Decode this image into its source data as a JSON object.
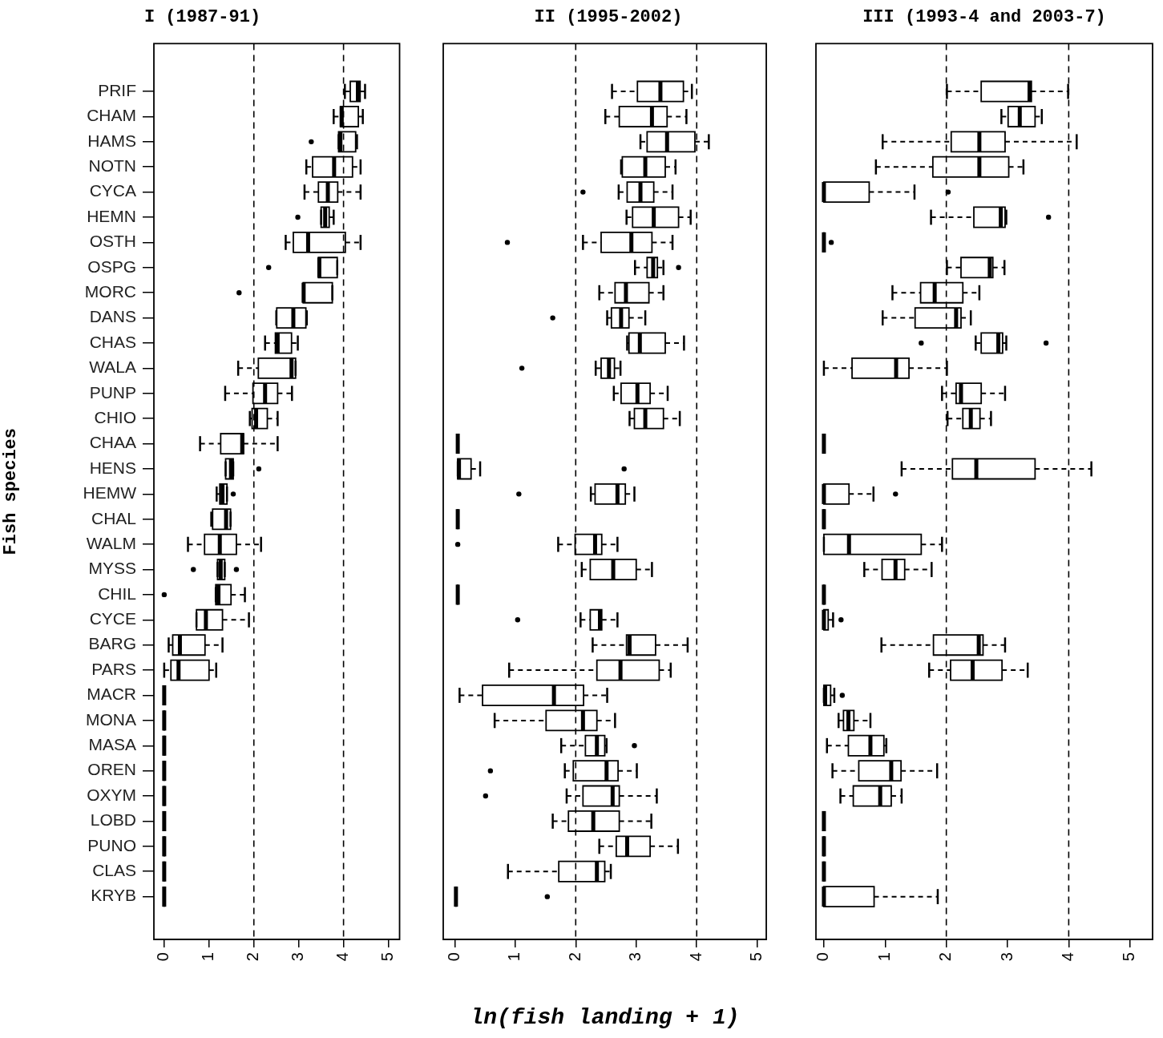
{
  "chart_data": [
    {
      "type": "box",
      "title": "I (1987-91)",
      "ylabel": "Fish species",
      "orientation": "horizontal",
      "xlim": [
        -0.23,
        5.25
      ],
      "xticks": [
        0,
        1,
        2,
        3,
        4,
        5
      ],
      "categories": [
        "PRIF",
        "CHAM",
        "HAMS",
        "NOTN",
        "CYCA",
        "HEMN",
        "OSTH",
        "OSPG",
        "MORC",
        "DANS",
        "CHAS",
        "WALA",
        "PUNP",
        "CHIO",
        "CHAA",
        "HENS",
        "HEMW",
        "CHAL",
        "WALM",
        "MYSS",
        "CHIL",
        "CYCE",
        "BARG",
        "PARS",
        "MACR",
        "MONA",
        "MASA",
        "OREN",
        "OXYM",
        "LOBD",
        "PUNO",
        "CLAS",
        "KRYB"
      ],
      "ref_lines": [
        {
          "axis": "x",
          "value": 2,
          "line_style": "dashed"
        },
        {
          "axis": "x",
          "value": 4,
          "line_style": "dashed"
        }
      ],
      "boxes": [
        {
          "low": 4.03,
          "q1": 4.15,
          "median": 4.32,
          "q3": 4.37,
          "high": 4.48
        },
        {
          "low": 3.78,
          "q1": 3.93,
          "median": 3.96,
          "q3": 4.33,
          "high": 4.43
        },
        {
          "low": 3.89,
          "q1": 3.89,
          "median": 3.93,
          "q3": 4.27,
          "high": 4.3,
          "outliers": [
            3.28
          ]
        },
        {
          "low": 3.17,
          "q1": 3.31,
          "median": 3.79,
          "q3": 4.2,
          "high": 4.38
        },
        {
          "low": 3.13,
          "q1": 3.44,
          "median": 3.65,
          "q3": 3.87,
          "high": 4.38
        },
        {
          "low": 3.5,
          "q1": 3.5,
          "median": 3.59,
          "q3": 3.68,
          "high": 3.78,
          "outliers": [
            2.98
          ]
        },
        {
          "low": 2.71,
          "q1": 2.88,
          "median": 3.21,
          "q3": 4.04,
          "high": 4.38
        },
        {
          "low": 3.44,
          "q1": 3.44,
          "median": 3.46,
          "q3": 3.86,
          "high": 3.86,
          "outliers": [
            2.33
          ]
        },
        {
          "low": 3.1,
          "q1": 3.1,
          "median": 3.11,
          "q3": 3.75,
          "high": 3.75,
          "outliers": [
            1.67
          ]
        },
        {
          "low": 2.5,
          "q1": 2.51,
          "median": 2.88,
          "q3": 3.16,
          "high": 3.18
        },
        {
          "low": 2.25,
          "q1": 2.48,
          "median": 2.53,
          "q3": 2.84,
          "high": 2.98
        },
        {
          "low": 1.65,
          "q1": 2.1,
          "median": 2.84,
          "q3": 2.93,
          "high": 2.93
        },
        {
          "low": 1.36,
          "q1": 1.98,
          "median": 2.25,
          "q3": 2.53,
          "high": 2.85
        },
        {
          "low": 1.91,
          "q1": 1.96,
          "median": 2.05,
          "q3": 2.3,
          "high": 2.53
        },
        {
          "low": 0.8,
          "q1": 1.26,
          "median": 1.74,
          "q3": 1.77,
          "high": 2.53
        },
        {
          "low": 1.37,
          "q1": 1.37,
          "median": 1.49,
          "q3": 1.54,
          "high": 1.54,
          "outliers": [
            2.11
          ]
        },
        {
          "low": 1.17,
          "q1": 1.24,
          "median": 1.3,
          "q3": 1.4,
          "high": 1.4,
          "outliers": [
            1.54
          ]
        },
        {
          "low": 1.05,
          "q1": 1.08,
          "median": 1.38,
          "q3": 1.48,
          "high": 1.48
        },
        {
          "low": 0.53,
          "q1": 0.9,
          "median": 1.24,
          "q3": 1.61,
          "high": 2.16
        },
        {
          "low": 1.19,
          "q1": 1.19,
          "median": 1.26,
          "q3": 1.35,
          "high": 1.35,
          "outliers": [
            0.65,
            1.61
          ]
        },
        {
          "low": 1.15,
          "q1": 1.15,
          "median": 1.21,
          "q3": 1.49,
          "high": 1.8,
          "outliers": [
            0
          ]
        },
        {
          "low": 0.72,
          "q1": 0.72,
          "median": 0.93,
          "q3": 1.3,
          "high": 1.89
        },
        {
          "low": 0.1,
          "q1": 0.19,
          "median": 0.35,
          "q3": 0.91,
          "high": 1.3
        },
        {
          "low": 0,
          "q1": 0.15,
          "median": 0.32,
          "q3": 1,
          "high": 1.16
        },
        {
          "low": 0,
          "q1": 0,
          "median": 0,
          "q3": 0,
          "high": 0
        },
        {
          "low": 0,
          "q1": 0,
          "median": 0,
          "q3": 0,
          "high": 0
        },
        {
          "low": 0,
          "q1": 0,
          "median": 0,
          "q3": 0,
          "high": 0
        },
        {
          "low": 0,
          "q1": 0,
          "median": 0,
          "q3": 0,
          "high": 0
        },
        {
          "low": 0,
          "q1": 0,
          "median": 0,
          "q3": 0,
          "high": 0
        },
        {
          "low": 0,
          "q1": 0,
          "median": 0,
          "q3": 0,
          "high": 0
        },
        {
          "low": 0,
          "q1": 0,
          "median": 0,
          "q3": 0,
          "high": 0
        },
        {
          "low": 0,
          "q1": 0,
          "median": 0,
          "q3": 0,
          "high": 0
        },
        {
          "low": 0,
          "q1": 0,
          "median": 0,
          "q3": 0,
          "high": 0
        }
      ]
    },
    {
      "type": "box",
      "title": "II (1995-2002)",
      "xlabel": "ln(fish landing + 1)",
      "orientation": "horizontal",
      "xlim": [
        -0.19,
        5.15
      ],
      "xticks": [
        0,
        1,
        2,
        3,
        4,
        5
      ],
      "tick_labels": "x",
      "categories": [
        null,
        null,
        null,
        null,
        null,
        null,
        null,
        null,
        null,
        null,
        null,
        null,
        null,
        null,
        null,
        null,
        null,
        null,
        null,
        null,
        null,
        null,
        null,
        null,
        null,
        null,
        null,
        null,
        null,
        null,
        null,
        null,
        null
      ],
      "ref_lines": [
        {
          "axis": "x",
          "value": 2,
          "line_style": "dashed"
        },
        {
          "axis": "x",
          "value": 4,
          "line_style": "dashed"
        }
      ],
      "boxes": [
        {
          "low": 2.6,
          "q1": 3.02,
          "median": 3.4,
          "q3": 3.78,
          "high": 3.92
        },
        {
          "low": 2.49,
          "q1": 2.72,
          "median": 3.26,
          "q3": 3.51,
          "high": 3.83
        },
        {
          "low": 3.07,
          "q1": 3.18,
          "median": 3.51,
          "q3": 3.97,
          "high": 4.2
        },
        {
          "low": 2.75,
          "q1": 2.77,
          "median": 3.15,
          "q3": 3.48,
          "high": 3.65
        },
        {
          "low": 2.71,
          "q1": 2.85,
          "median": 3.07,
          "q3": 3.29,
          "high": 3.6,
          "outliers": [
            2.12
          ]
        },
        {
          "low": 2.84,
          "q1": 2.94,
          "median": 3.29,
          "q3": 3.7,
          "high": 3.9
        },
        {
          "low": 2.12,
          "q1": 2.42,
          "median": 2.92,
          "q3": 3.26,
          "high": 3.6,
          "outliers": [
            0.87
          ]
        },
        {
          "low": 2.98,
          "q1": 3.18,
          "median": 3.28,
          "q3": 3.35,
          "high": 3.45,
          "outliers": [
            3.7
          ]
        },
        {
          "low": 2.39,
          "q1": 2.65,
          "median": 2.83,
          "q3": 3.21,
          "high": 3.45
        },
        {
          "low": 2.52,
          "q1": 2.59,
          "median": 2.75,
          "q3": 2.88,
          "high": 3.15,
          "outliers": [
            1.62
          ]
        },
        {
          "low": 2.85,
          "q1": 2.88,
          "median": 3.06,
          "q3": 3.48,
          "high": 3.79
        },
        {
          "low": 2.33,
          "q1": 2.42,
          "median": 2.55,
          "q3": 2.64,
          "high": 2.74,
          "outliers": [
            1.11
          ]
        },
        {
          "low": 2.63,
          "q1": 2.75,
          "median": 3.02,
          "q3": 3.23,
          "high": 3.52
        },
        {
          "low": 2.89,
          "q1": 2.97,
          "median": 3.15,
          "q3": 3.45,
          "high": 3.72
        },
        {
          "low": 0.05,
          "q1": 0.05,
          "median": 0.05,
          "q3": 0.05,
          "high": 0.05
        },
        {
          "low": 0.05,
          "q1": 0.05,
          "median": 0.07,
          "q3": 0.27,
          "high": 0.42,
          "outliers": [
            2.8
          ]
        },
        {
          "low": 2.25,
          "q1": 2.32,
          "median": 2.69,
          "q3": 2.82,
          "high": 2.97,
          "outliers": [
            1.06
          ]
        },
        {
          "low": 0.05,
          "q1": 0.05,
          "median": 0.05,
          "q3": 0.05,
          "high": 0.05
        },
        {
          "low": 1.71,
          "q1": 1.99,
          "median": 2.32,
          "q3": 2.43,
          "high": 2.69,
          "outliers": [
            0.05
          ]
        },
        {
          "low": 2.1,
          "q1": 2.24,
          "median": 2.62,
          "q3": 3,
          "high": 3.26
        },
        {
          "low": 0.05,
          "q1": 0.05,
          "median": 0.05,
          "q3": 0.05,
          "high": 0.05
        },
        {
          "low": 2.08,
          "q1": 2.24,
          "median": 2.4,
          "q3": 2.43,
          "high": 2.69,
          "outliers": [
            1.04
          ]
        },
        {
          "low": 2.28,
          "q1": 2.84,
          "median": 2.89,
          "q3": 3.32,
          "high": 3.85
        },
        {
          "low": 0.9,
          "q1": 2.35,
          "median": 2.74,
          "q3": 3.38,
          "high": 3.57
        },
        {
          "low": 0.08,
          "q1": 0.46,
          "median": 1.64,
          "q3": 2.13,
          "high": 2.52
        },
        {
          "low": 0.66,
          "q1": 1.51,
          "median": 2.12,
          "q3": 2.35,
          "high": 2.65
        },
        {
          "low": 1.76,
          "q1": 2.16,
          "median": 2.35,
          "q3": 2.48,
          "high": 2.51,
          "outliers": [
            2.97
          ]
        },
        {
          "low": 1.82,
          "q1": 1.96,
          "median": 2.51,
          "q3": 2.7,
          "high": 3.01,
          "outliers": [
            0.59
          ]
        },
        {
          "low": 1.85,
          "q1": 2.12,
          "median": 2.61,
          "q3": 2.72,
          "high": 3.34,
          "outliers": [
            0.51
          ]
        },
        {
          "low": 1.62,
          "q1": 1.88,
          "median": 2.29,
          "q3": 2.72,
          "high": 3.25
        },
        {
          "low": 2.39,
          "q1": 2.67,
          "median": 2.85,
          "q3": 3.23,
          "high": 3.69
        },
        {
          "low": 0.88,
          "q1": 1.72,
          "median": 2.35,
          "q3": 2.48,
          "high": 2.58
        },
        {
          "low": 0.02,
          "q1": 0.02,
          "median": 0.02,
          "q3": 0.02,
          "high": 0.02,
          "outliers": [
            1.53
          ]
        }
      ]
    },
    {
      "type": "box",
      "title": "III (1993-4 and 2003-7)",
      "orientation": "horizontal",
      "xlim": [
        -0.13,
        5.37
      ],
      "xticks": [
        0,
        1,
        2,
        3,
        4,
        5
      ],
      "tick_labels": "x",
      "categories": [
        null,
        null,
        null,
        null,
        null,
        null,
        null,
        null,
        null,
        null,
        null,
        null,
        null,
        null,
        null,
        null,
        null,
        null,
        null,
        null,
        null,
        null,
        null,
        null,
        null,
        null,
        null,
        null,
        null,
        null,
        null,
        null,
        null
      ],
      "ref_lines": [
        {
          "axis": "x",
          "value": 2,
          "line_style": "dashed"
        },
        {
          "axis": "x",
          "value": 4,
          "line_style": "dashed"
        }
      ],
      "boxes": [
        {
          "low": 2.01,
          "q1": 2.57,
          "median": 3.36,
          "q3": 3.39,
          "high": 3.99
        },
        {
          "low": 2.9,
          "q1": 3.01,
          "median": 3.2,
          "q3": 3.45,
          "high": 3.56
        },
        {
          "low": 0.96,
          "q1": 2.08,
          "median": 2.54,
          "q3": 2.96,
          "high": 4.13
        },
        {
          "low": 0.85,
          "q1": 1.78,
          "median": 2.54,
          "q3": 3.02,
          "high": 3.26
        },
        {
          "low": 0,
          "q1": 0,
          "median": 0,
          "q3": 0.74,
          "high": 1.48,
          "outliers": [
            2.03
          ]
        },
        {
          "low": 1.75,
          "q1": 2.45,
          "median": 2.89,
          "q3": 2.96,
          "high": 2.98,
          "outliers": [
            3.67
          ]
        },
        {
          "low": 0,
          "q1": 0,
          "median": 0,
          "q3": 0,
          "high": 0,
          "outliers": [
            0.12
          ]
        },
        {
          "low": 2.01,
          "q1": 2.24,
          "median": 2.71,
          "q3": 2.76,
          "high": 2.95
        },
        {
          "low": 1.12,
          "q1": 1.58,
          "median": 1.81,
          "q3": 2.27,
          "high": 2.54
        },
        {
          "low": 0.96,
          "q1": 1.49,
          "median": 2.16,
          "q3": 2.24,
          "high": 2.4
        },
        {
          "low": 2.48,
          "q1": 2.57,
          "median": 2.85,
          "q3": 2.92,
          "high": 2.98,
          "outliers": [
            1.59,
            3.63
          ]
        },
        {
          "low": 0,
          "q1": 0.46,
          "median": 1.18,
          "q3": 1.39,
          "high": 2.01
        },
        {
          "low": 1.93,
          "q1": 2.16,
          "median": 2.24,
          "q3": 2.57,
          "high": 2.96
        },
        {
          "low": 2.02,
          "q1": 2.27,
          "median": 2.4,
          "q3": 2.55,
          "high": 2.73
        },
        {
          "low": 0,
          "q1": 0,
          "median": 0,
          "q3": 0,
          "high": 0
        },
        {
          "low": 1.27,
          "q1": 2.1,
          "median": 2.49,
          "q3": 3.45,
          "high": 4.37
        },
        {
          "low": 0,
          "q1": 0,
          "median": 0,
          "q3": 0.41,
          "high": 0.81,
          "outliers": [
            1.17
          ]
        },
        {
          "low": 0,
          "q1": 0,
          "median": 0,
          "q3": 0,
          "high": 0
        },
        {
          "low": 0,
          "q1": 0,
          "median": 0.41,
          "q3": 1.59,
          "high": 1.93
        },
        {
          "low": 0.66,
          "q1": 0.95,
          "median": 1.17,
          "q3": 1.32,
          "high": 1.76
        },
        {
          "low": 0,
          "q1": 0,
          "median": 0,
          "q3": 0,
          "high": 0
        },
        {
          "low": 0,
          "q1": 0,
          "median": 0,
          "q3": 0.07,
          "high": 0.15,
          "outliers": [
            0.28
          ]
        },
        {
          "low": 0.94,
          "q1": 1.79,
          "median": 2.53,
          "q3": 2.6,
          "high": 2.96
        },
        {
          "low": 1.72,
          "q1": 2.07,
          "median": 2.43,
          "q3": 2.91,
          "high": 3.33
        },
        {
          "low": 0,
          "q1": 0,
          "median": 0.02,
          "q3": 0.11,
          "high": 0.17,
          "outliers": [
            0.3
          ]
        },
        {
          "low": 0.24,
          "q1": 0.32,
          "median": 0.4,
          "q3": 0.49,
          "high": 0.76
        },
        {
          "low": 0.05,
          "q1": 0.4,
          "median": 0.76,
          "q3": 0.98,
          "high": 1.02
        },
        {
          "low": 0.14,
          "q1": 0.57,
          "median": 1.1,
          "q3": 1.26,
          "high": 1.85
        },
        {
          "low": 0.27,
          "q1": 0.48,
          "median": 0.92,
          "q3": 1.1,
          "high": 1.27
        },
        {
          "low": 0,
          "q1": 0,
          "median": 0,
          "q3": 0,
          "high": 0
        },
        {
          "low": 0,
          "q1": 0,
          "median": 0,
          "q3": 0,
          "high": 0
        },
        {
          "low": 0,
          "q1": 0,
          "median": 0,
          "q3": 0,
          "high": 0
        },
        {
          "low": 0,
          "q1": 0,
          "median": 0,
          "q3": 0.82,
          "high": 1.86
        }
      ]
    }
  ]
}
